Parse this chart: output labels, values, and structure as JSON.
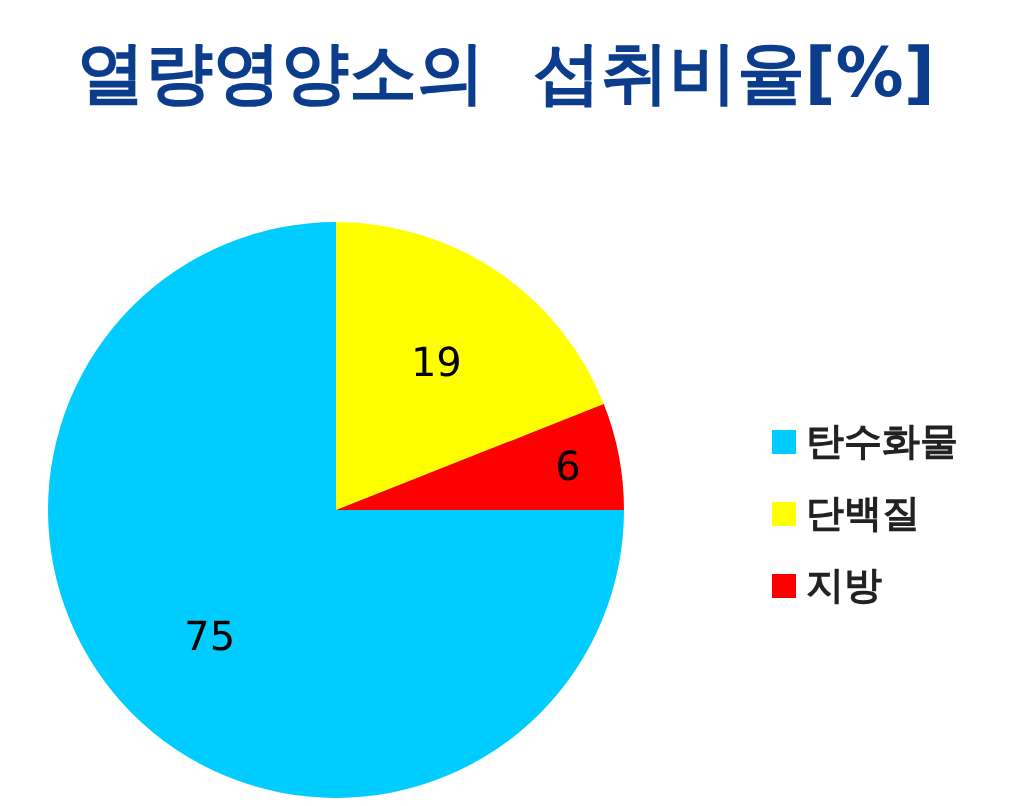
{
  "chart_data": {
    "type": "pie",
    "title": "열량영양소의  섭취비율[%]",
    "categories": [
      "탄수화물",
      "단백질",
      "지방"
    ],
    "values": [
      75,
      19,
      6
    ],
    "colors": [
      "#00ccff",
      "#ffff00",
      "#ff0000"
    ],
    "data_labels": true,
    "legend": "right"
  }
}
